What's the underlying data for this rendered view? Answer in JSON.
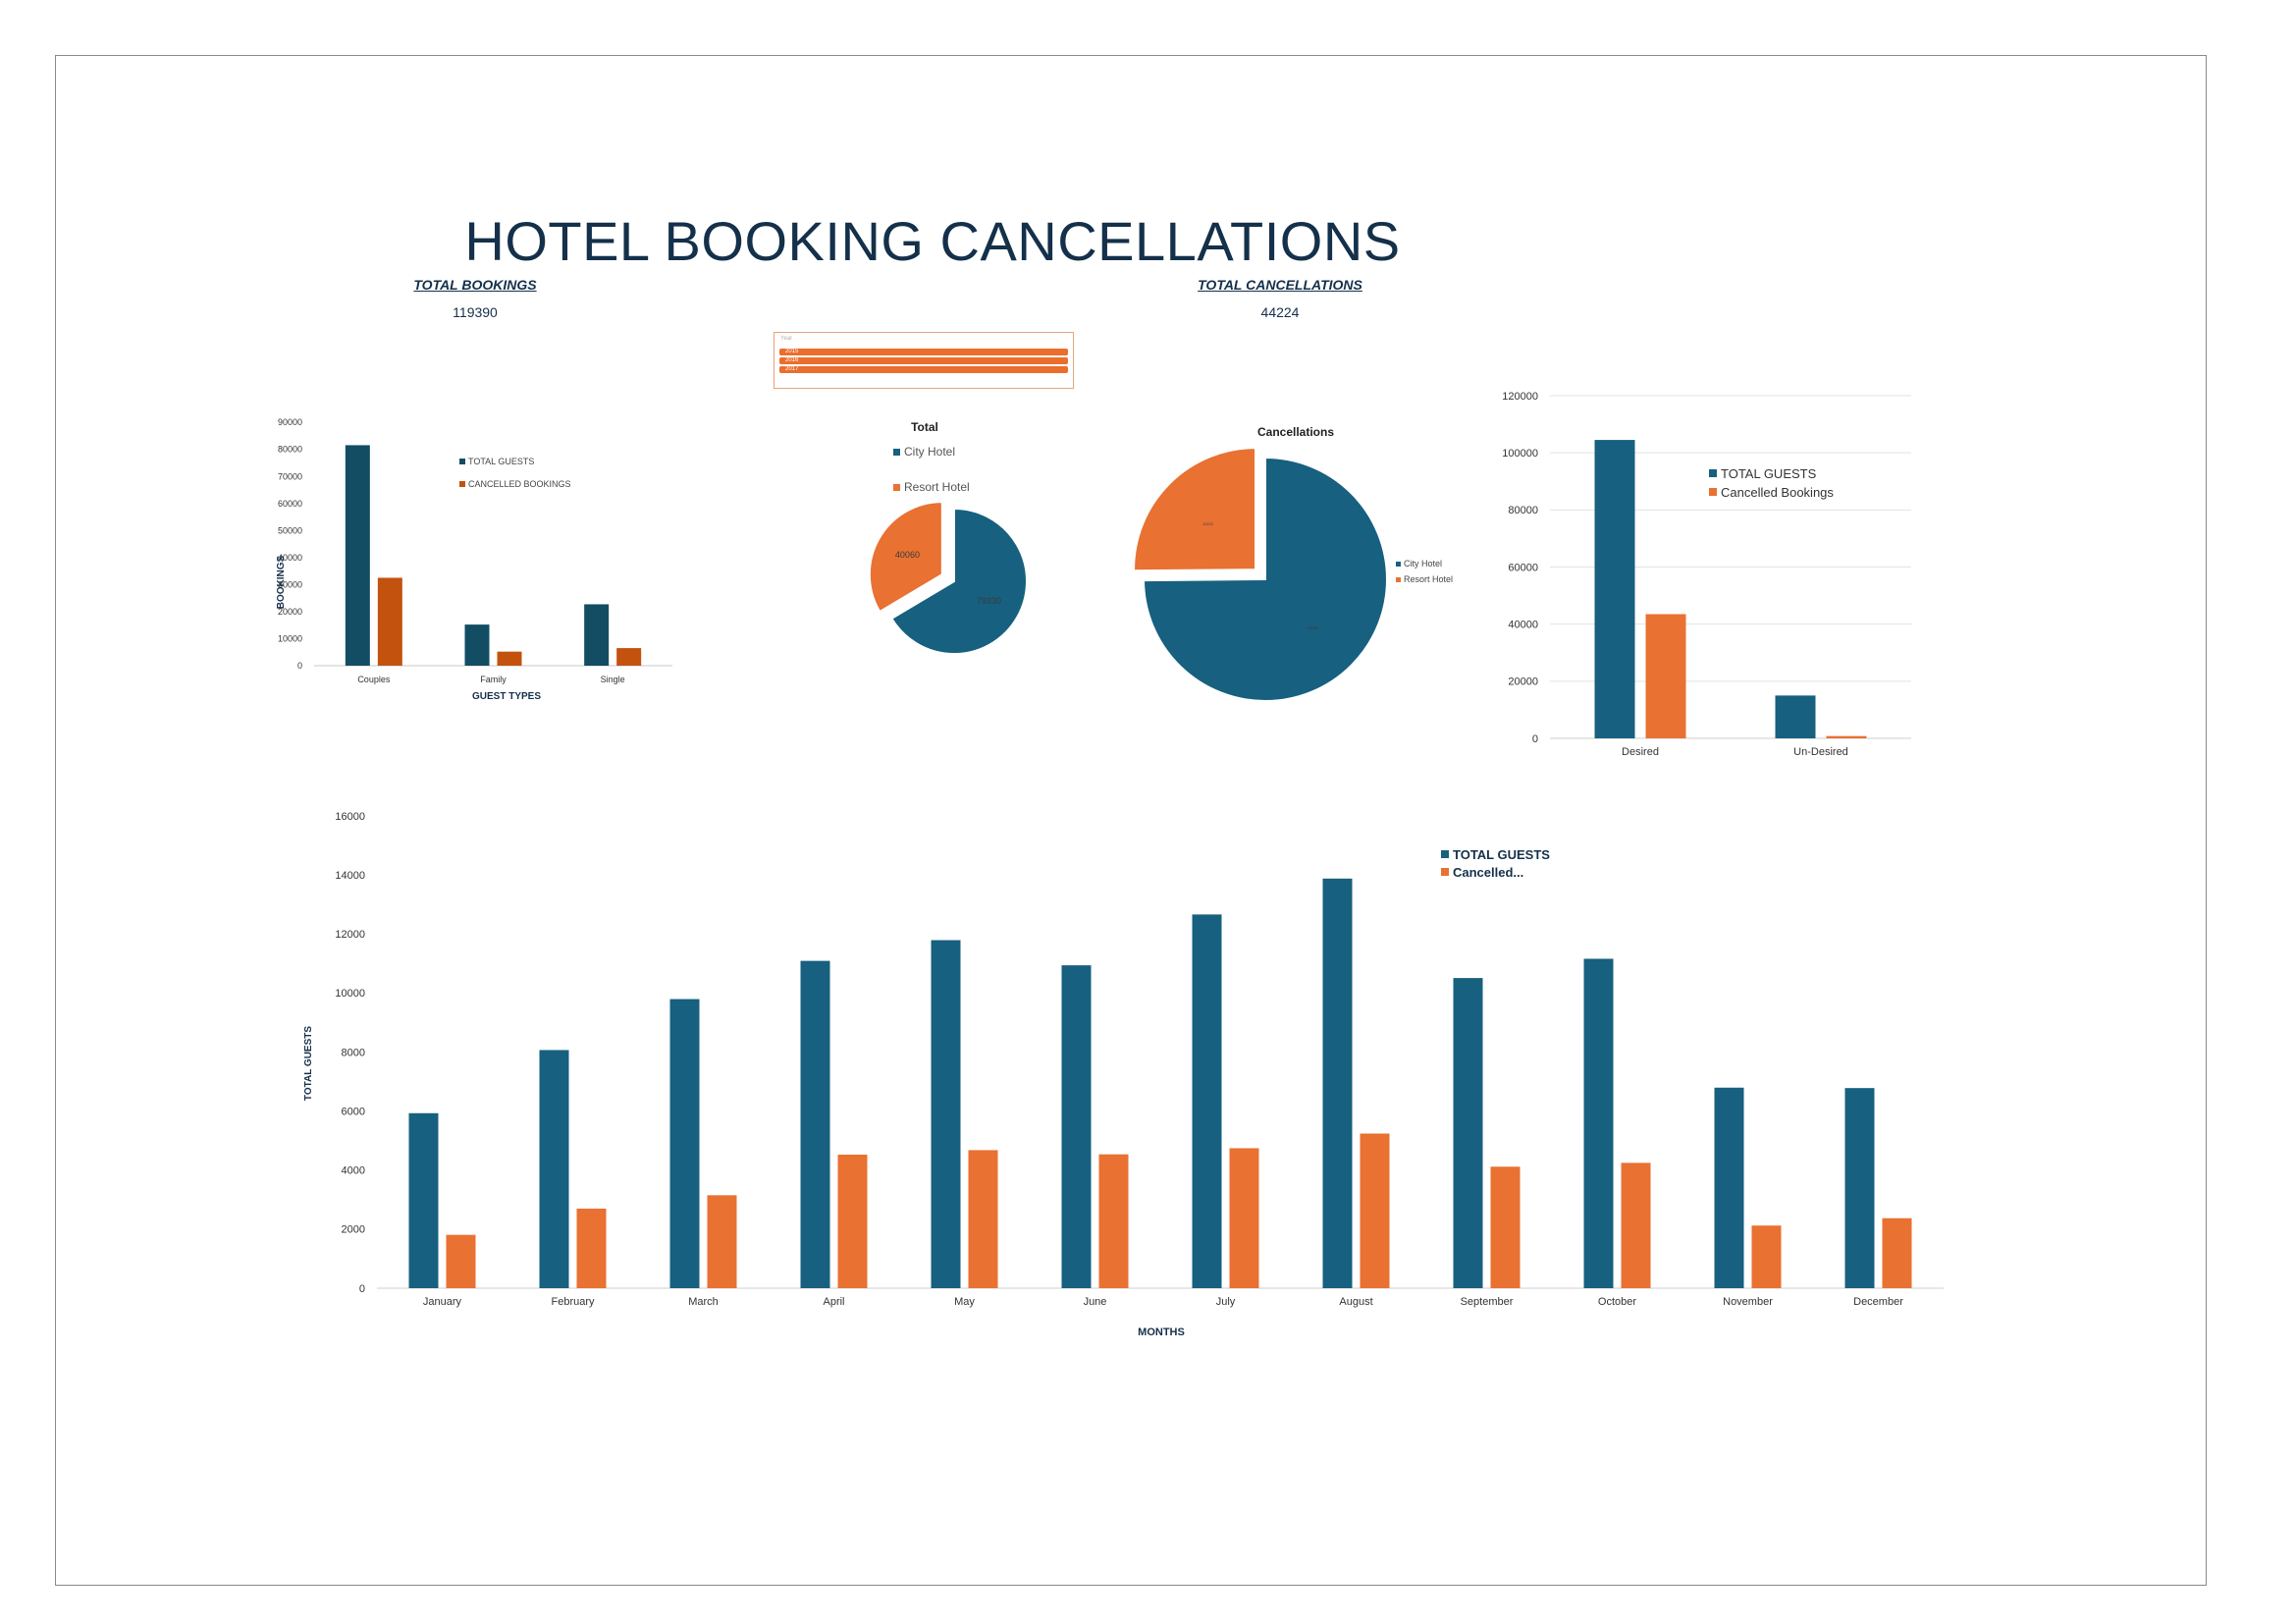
{
  "dashboard": {
    "title": "HOTEL BOOKING CANCELLATIONS",
    "total_bookings_label": "TOTAL BOOKINGS",
    "total_bookings_value": "119390",
    "total_cancellations_label": "TOTAL CANCELLATIONS",
    "total_cancellations_value": "44224"
  },
  "slicer": {
    "header": "Year",
    "items": [
      "2015",
      "2016",
      "2017"
    ],
    "color": "#ea6e2d"
  },
  "colors": {
    "blue": "#17607f",
    "dark_blue": "#124d63",
    "orange": "#e97132",
    "dark_orange": "#c3520f",
    "text": "#14304a"
  },
  "chart_data": [
    {
      "id": "guest-types",
      "type": "bar",
      "title": "",
      "xlabel": "GUEST TYPES",
      "ylabel": "BOOKINGS",
      "categories": [
        "Couples",
        "Family",
        "Single"
      ],
      "series": [
        {
          "name": "TOTAL GUESTS",
          "values": [
            81500,
            15200,
            22700
          ]
        },
        {
          "name": "CANCELLED BOOKINGS",
          "values": [
            32500,
            5200,
            6500
          ]
        }
      ],
      "ylim": [
        0,
        90000
      ],
      "yticks": [
        "0",
        "10000",
        "20000",
        "30000",
        "40000",
        "50000",
        "60000",
        "70000",
        "80000",
        "90000"
      ],
      "legend": "top-right"
    },
    {
      "id": "hotel-total",
      "type": "pie",
      "title": "Total",
      "labels": [
        "City Hotel",
        "Resort Hotel"
      ],
      "values": [
        79330,
        40060
      ],
      "value_labels": [
        "79330",
        "40060"
      ],
      "legend": "top"
    },
    {
      "id": "hotel-cancellations",
      "type": "pie",
      "title": "Cancellations",
      "labels": [
        "City Hotel",
        "Resort Hotel"
      ],
      "values": [
        33102,
        11122
      ],
      "value_labels": [
        "33102",
        "11122"
      ],
      "legend": "right"
    },
    {
      "id": "desired",
      "type": "bar",
      "title": "",
      "categories": [
        "Desired",
        "Un-Desired"
      ],
      "series": [
        {
          "name": "TOTAL GUESTS",
          "values": [
            104500,
            15000
          ]
        },
        {
          "name": "Cancelled Bookings",
          "values": [
            43500,
            800
          ]
        }
      ],
      "ylim": [
        0,
        120000
      ],
      "yticks": [
        "0",
        "20000",
        "40000",
        "60000",
        "80000",
        "100000",
        "120000"
      ],
      "legend": "top-right"
    },
    {
      "id": "months",
      "type": "bar",
      "title": "",
      "xlabel": "MONTHS",
      "ylabel": "TOTAL GUESTS",
      "categories": [
        "January",
        "February",
        "March",
        "April",
        "May",
        "June",
        "July",
        "August",
        "September",
        "October",
        "November",
        "December"
      ],
      "series": [
        {
          "name": "TOTAL GUESTS",
          "values": [
            5929,
            8068,
            9794,
            11089,
            11791,
            10939,
            12661,
            13877,
            10508,
            11160,
            6794,
            6780
          ]
        },
        {
          "name": "Cancelled...",
          "values": [
            1807,
            2696,
            3149,
            4524,
            4677,
            4535,
            4742,
            5239,
            4116,
            4246,
            2122,
            2371
          ]
        }
      ],
      "ylim": [
        0,
        16000
      ],
      "yticks": [
        "0",
        "2000",
        "4000",
        "6000",
        "8000",
        "10000",
        "12000",
        "14000",
        "16000"
      ],
      "legend": "top-right"
    }
  ]
}
